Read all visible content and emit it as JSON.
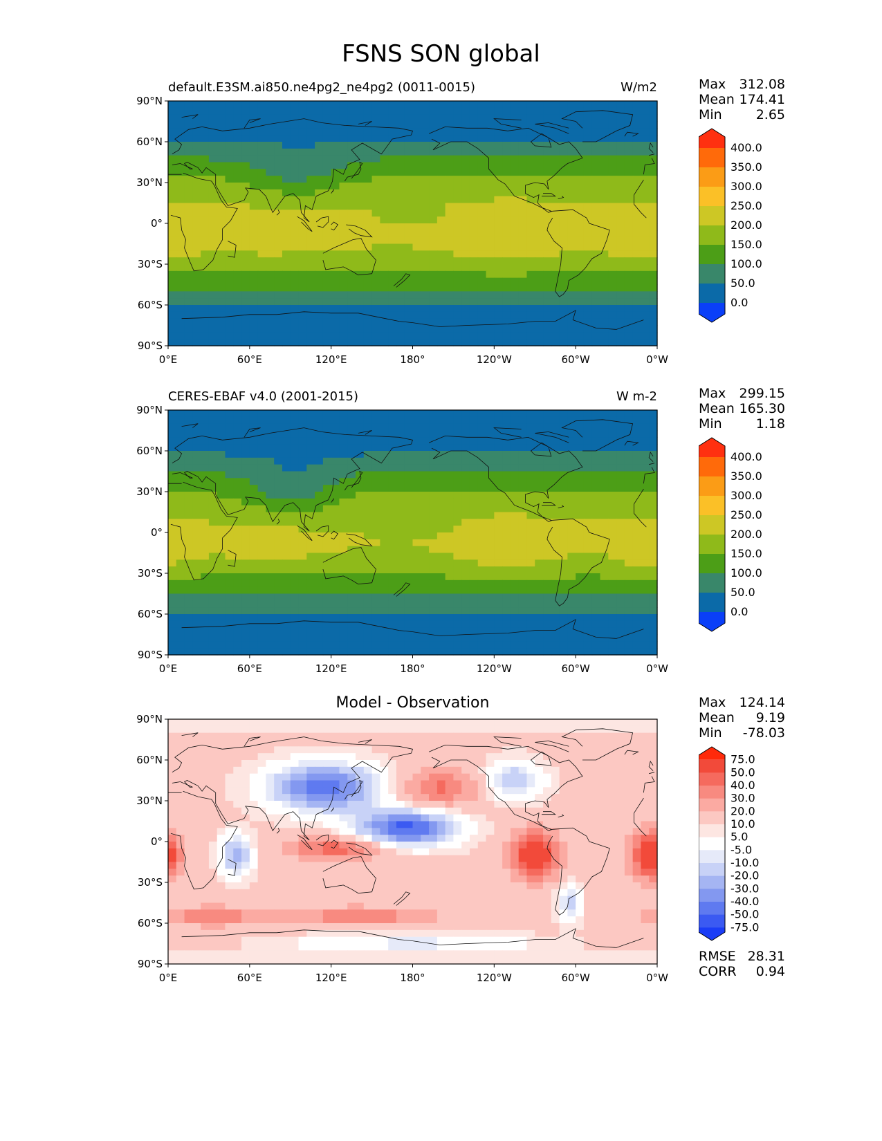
{
  "figure": {
    "title": "FSNS SON global"
  },
  "axes": {
    "lat_ticks": [
      "90°N",
      "60°N",
      "30°N",
      "0°",
      "30°S",
      "60°S",
      "90°S"
    ],
    "lon_ticks": [
      "0°E",
      "60°E",
      "120°E",
      "180°",
      "120°W",
      "60°W",
      "0°W"
    ]
  },
  "panels": [
    {
      "title_left": "default.E3SM.ai850.ne4pg2_ne4pg2 (0011-0015)",
      "units": "W/m2",
      "stats": [
        {
          "label": "Max",
          "value": "312.08"
        },
        {
          "label": "Mean",
          "value": "174.41"
        },
        {
          "label": "Min",
          "value": "2.65"
        }
      ],
      "colorbar": {
        "labels": [
          "400.0",
          "350.0",
          "300.0",
          "250.0",
          "200.0",
          "150.0",
          "100.0",
          "50.0",
          "0.0"
        ],
        "colors": [
          "#ff3010",
          "#ff6a0a",
          "#fb9c16",
          "#fbc027",
          "#cdc725",
          "#8fba1a",
          "#4c9e17",
          "#39876a",
          "#0b6aa8",
          "#0a3ff8"
        ]
      }
    },
    {
      "title_left": "CERES-EBAF v4.0 (2001-2015)",
      "units": "W m-2",
      "stats": [
        {
          "label": "Max",
          "value": "299.15"
        },
        {
          "label": "Mean",
          "value": "165.30"
        },
        {
          "label": "Min",
          "value": "1.18"
        }
      ],
      "colorbar": {
        "labels": [
          "400.0",
          "350.0",
          "300.0",
          "250.0",
          "200.0",
          "150.0",
          "100.0",
          "50.0",
          "0.0"
        ],
        "colors": [
          "#ff3010",
          "#ff6a0a",
          "#fb9c16",
          "#fbc027",
          "#cdc725",
          "#8fba1a",
          "#4c9e17",
          "#39876a",
          "#0b6aa8",
          "#0a3ff8"
        ]
      }
    },
    {
      "title_center": "Model - Observation",
      "stats": [
        {
          "label": "Max",
          "value": "124.14"
        },
        {
          "label": "Mean",
          "value": "9.19"
        },
        {
          "label": "Min",
          "value": "-78.03"
        }
      ],
      "extra_stats": [
        {
          "label": "RMSE",
          "value": "28.31"
        },
        {
          "label": "CORR",
          "value": "0.94"
        }
      ],
      "colorbar": {
        "labels": [
          "75.0",
          "50.0",
          "40.0",
          "30.0",
          "20.0",
          "10.0",
          "5.0",
          "-5.0",
          "-10.0",
          "-20.0",
          "-30.0",
          "-40.0",
          "-50.0",
          "-75.0"
        ],
        "colors": [
          "#ff2a0a",
          "#f24a3a",
          "#f56a5e",
          "#f88a80",
          "#fbaaa2",
          "#fcc8c2",
          "#fde6e2",
          "#ffffff",
          "#e6eaf9",
          "#c8d2f7",
          "#a5b5f3",
          "#8398f0",
          "#5f7af0",
          "#3b5af2",
          "#1b3df6"
        ]
      }
    }
  ]
}
